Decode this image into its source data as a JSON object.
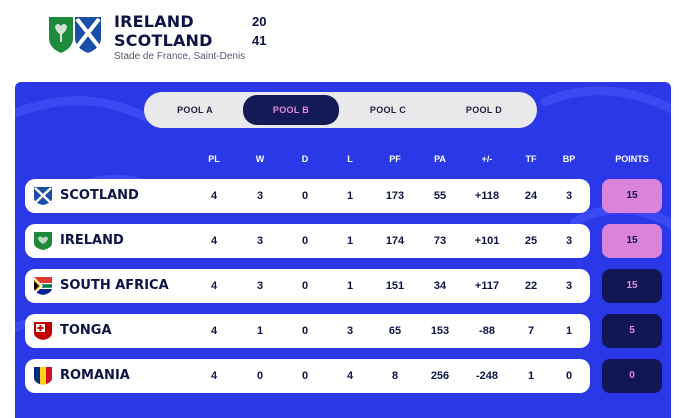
{
  "match": {
    "home_team": "IRELAND",
    "away_team": "SCOTLAND",
    "home_score": "20",
    "away_score": "41",
    "venue": "Stade de France, Saint-Denis",
    "icons": [
      "ireland-flag-icon",
      "scotland-flag-icon"
    ]
  },
  "tabs": [
    {
      "label": "POOL A",
      "active": false
    },
    {
      "label": "POOL B",
      "active": true
    },
    {
      "label": "POOL C",
      "active": false
    },
    {
      "label": "POOL D",
      "active": false
    }
  ],
  "columns": {
    "pl": "PL",
    "w": "W",
    "d": "D",
    "l": "L",
    "pf": "PF",
    "pa": "PA",
    "diff": "+/-",
    "tf": "TF",
    "bp": "BP",
    "points": "POINTS"
  },
  "rows": [
    {
      "team": "SCOTLAND",
      "flag": "scotland-flag-icon",
      "pl": "4",
      "w": "3",
      "d": "0",
      "l": "1",
      "pf": "173",
      "pa": "55",
      "diff": "+118",
      "tf": "24",
      "bp": "3",
      "points": "15",
      "status": "qualified"
    },
    {
      "team": "IRELAND",
      "flag": "ireland-flag-icon",
      "pl": "4",
      "w": "3",
      "d": "0",
      "l": "1",
      "pf": "174",
      "pa": "73",
      "diff": "+101",
      "tf": "25",
      "bp": "3",
      "points": "15",
      "status": "qualified"
    },
    {
      "team": "SOUTH AFRICA",
      "flag": "south-africa-flag-icon",
      "pl": "4",
      "w": "3",
      "d": "0",
      "l": "1",
      "pf": "151",
      "pa": "34",
      "diff": "+117",
      "tf": "22",
      "bp": "3",
      "points": "15",
      "status": "eliminated"
    },
    {
      "team": "TONGA",
      "flag": "tonga-flag-icon",
      "pl": "4",
      "w": "1",
      "d": "0",
      "l": "3",
      "pf": "65",
      "pa": "153",
      "diff": "-88",
      "tf": "7",
      "bp": "1",
      "points": "5",
      "status": "eliminated"
    },
    {
      "team": "ROMANIA",
      "flag": "romania-flag-icon",
      "pl": "4",
      "w": "0",
      "d": "0",
      "l": "4",
      "pf": "8",
      "pa": "256",
      "diff": "-248",
      "tf": "1",
      "bp": "0",
      "points": "0",
      "status": "eliminated"
    }
  ],
  "colors": {
    "panel": "#2a38e8",
    "active_tab": "#141a55",
    "qualified_points": "#d983dc",
    "eliminated_points": "#111654",
    "accent_pink": "#e58cd9"
  }
}
